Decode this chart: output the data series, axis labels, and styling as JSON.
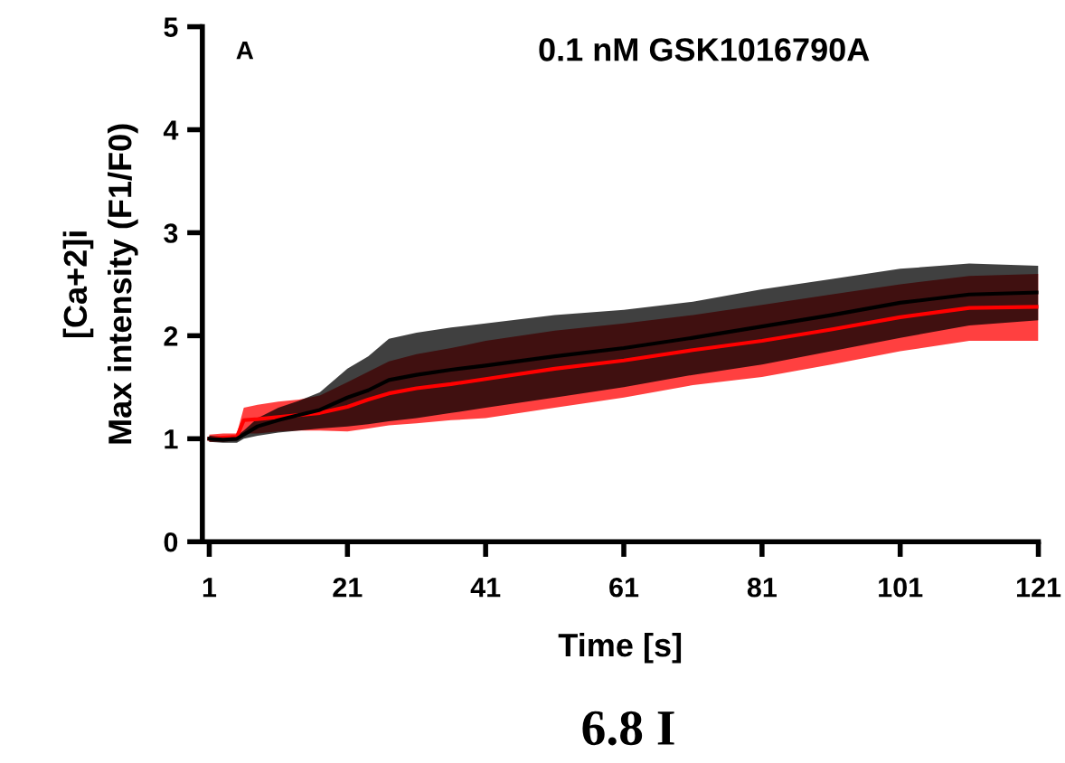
{
  "chart_data": {
    "type": "line",
    "title": "0.1 nM GSK1016790A",
    "xlabel": "Time [s]",
    "ylabel": "[Ca+2]i\nMax intensity (F1/F0)",
    "annotations": [
      "A",
      "6.8 I"
    ],
    "x": [
      1,
      3,
      5,
      6,
      8,
      11,
      14,
      17,
      21,
      24,
      27,
      31,
      36,
      41,
      51,
      61,
      71,
      81,
      91,
      101,
      111,
      121
    ],
    "series": [
      {
        "color": "#ff0000",
        "values": [
          1.0,
          1.01,
          1.02,
          1.18,
          1.19,
          1.21,
          1.23,
          1.25,
          1.31,
          1.38,
          1.44,
          1.49,
          1.53,
          1.58,
          1.68,
          1.76,
          1.86,
          1.95,
          2.06,
          2.18,
          2.27,
          2.28
        ],
        "lower": [
          0.97,
          0.97,
          0.98,
          1.05,
          1.05,
          1.07,
          1.08,
          1.08,
          1.07,
          1.1,
          1.13,
          1.15,
          1.18,
          1.2,
          1.3,
          1.4,
          1.52,
          1.6,
          1.72,
          1.85,
          1.95,
          1.95
        ],
        "upper": [
          1.04,
          1.05,
          1.05,
          1.3,
          1.33,
          1.36,
          1.38,
          1.42,
          1.55,
          1.65,
          1.75,
          1.82,
          1.88,
          1.95,
          2.05,
          2.12,
          2.2,
          2.3,
          2.4,
          2.5,
          2.58,
          2.6
        ]
      },
      {
        "color": "#000000",
        "values": [
          1.0,
          0.99,
          1.0,
          1.04,
          1.12,
          1.18,
          1.23,
          1.28,
          1.4,
          1.47,
          1.57,
          1.62,
          1.67,
          1.71,
          1.8,
          1.88,
          1.98,
          2.09,
          2.2,
          2.32,
          2.4,
          2.42
        ],
        "lower": [
          0.97,
          0.96,
          0.96,
          1.0,
          1.03,
          1.06,
          1.08,
          1.1,
          1.12,
          1.14,
          1.17,
          1.2,
          1.25,
          1.3,
          1.4,
          1.5,
          1.62,
          1.72,
          1.85,
          1.98,
          2.1,
          2.15
        ],
        "upper": [
          1.03,
          1.02,
          1.03,
          1.08,
          1.2,
          1.3,
          1.37,
          1.45,
          1.68,
          1.8,
          1.97,
          2.03,
          2.08,
          2.12,
          2.2,
          2.25,
          2.33,
          2.45,
          2.55,
          2.65,
          2.7,
          2.68
        ]
      }
    ],
    "xlim": [
      0,
      121
    ],
    "xticks": [
      1,
      21,
      41,
      61,
      81,
      101,
      121
    ],
    "ylim": [
      0,
      5
    ],
    "yticks": [
      0,
      1,
      2,
      3,
      4,
      5
    ],
    "grid": false,
    "legend": false
  }
}
